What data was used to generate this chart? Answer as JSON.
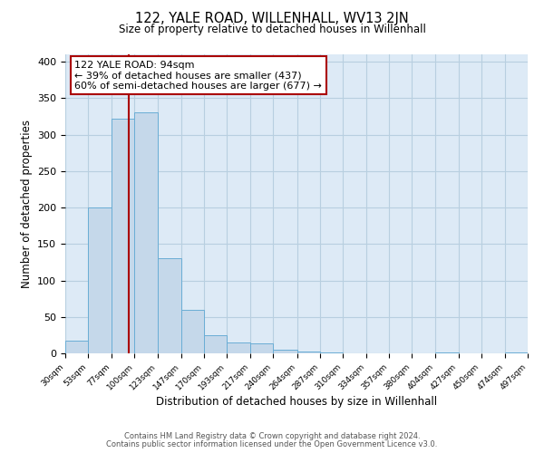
{
  "title": "122, YALE ROAD, WILLENHALL, WV13 2JN",
  "subtitle": "Size of property relative to detached houses in Willenhall",
  "xlabel": "Distribution of detached houses by size in Willenhall",
  "ylabel": "Number of detached properties",
  "bar_color": "#c5d8ea",
  "bar_edge_color": "#6aadd5",
  "bg_color": "#ddeaf6",
  "grid_color": "#b8cfe0",
  "annotation_line1": "122 YALE ROAD: 94sqm",
  "annotation_line2": "← 39% of detached houses are smaller (437)",
  "annotation_line3": "60% of semi-detached houses are larger (677) →",
  "red_line_x": 94,
  "bin_edges": [
    30,
    53,
    77,
    100,
    123,
    147,
    170,
    193,
    217,
    240,
    264,
    287,
    310,
    334,
    357,
    380,
    404,
    427,
    450,
    474,
    497
  ],
  "bar_heights": [
    18,
    200,
    322,
    330,
    130,
    60,
    25,
    15,
    14,
    5,
    2,
    1,
    0,
    0,
    0,
    0,
    1,
    0,
    0,
    1
  ],
  "ylim": [
    0,
    410
  ],
  "yticks": [
    0,
    50,
    100,
    150,
    200,
    250,
    300,
    350,
    400
  ],
  "footer_line1": "Contains HM Land Registry data © Crown copyright and database right 2024.",
  "footer_line2": "Contains public sector information licensed under the Open Government Licence v3.0."
}
